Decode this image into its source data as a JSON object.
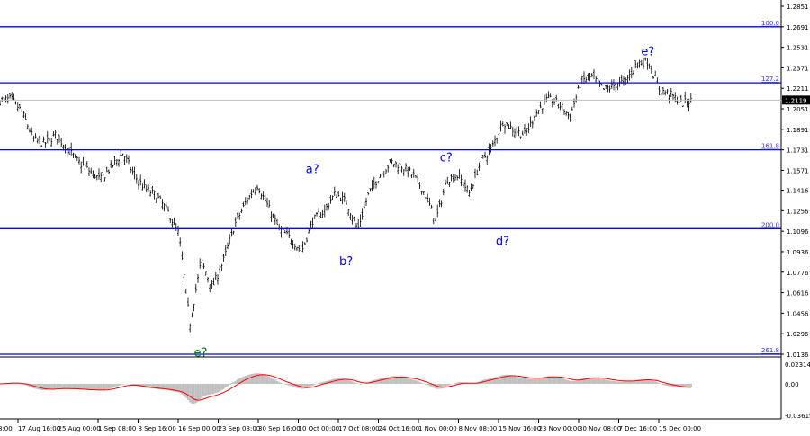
{
  "chart_data": {
    "type": "candlestick",
    "price_axis": {
      "ticks": [
        "1.2851",
        "1.2691",
        "1.2531",
        "1.2371",
        "1.2211",
        "1.2051",
        "1.1891",
        "1.1731",
        "1.1571",
        "1.1416",
        "1.1256",
        "1.1096",
        "1.0936",
        "1.0776",
        "1.0616",
        "1.0456",
        "1.0296",
        "1.0136"
      ],
      "ylim": [
        1.0136,
        1.2851
      ]
    },
    "current_price": "1.2119",
    "time_axis": {
      "ticks": [
        "8:00",
        "17 Aug 16:00",
        "25 Aug 00:00",
        "1 Sep 08:00",
        "8 Sep 16:00",
        "16 Sep 00:00",
        "23 Sep 08:00",
        "30 Sep 16:00",
        "10 Oct 00:00",
        "17 Oct 08:00",
        "24 Oct 16:00",
        "1 Nov 00:00",
        "8 Nov 08:00",
        "15 Nov 16:00",
        "23 Nov 00:00",
        "30 Nov 08:00",
        "7 Dec 16:00",
        "15 Dec 00:00"
      ]
    },
    "closes": [
      1.2114,
      1.2128,
      1.2023,
      1.1813,
      1.1778,
      1.1848,
      1.1742,
      1.1637,
      1.1567,
      1.1497,
      1.1602,
      1.1707,
      1.1532,
      1.1427,
      1.1371,
      1.1251,
      1.1076,
      1.0374,
      1.0865,
      1.0655,
      1.0865,
      1.1146,
      1.1321,
      1.1462,
      1.1286,
      1.1111,
      1.1041,
      1.0936,
      1.1181,
      1.1251,
      1.1392,
      1.1321,
      1.1111,
      1.1392,
      1.1532,
      1.1637,
      1.1602,
      1.1532,
      1.1392,
      1.1181,
      1.1497,
      1.1532,
      1.1392,
      1.1637,
      1.1742,
      1.1953,
      1.1883,
      1.1848,
      1.2023,
      1.2128,
      1.2093,
      1.1988,
      1.2269,
      1.2304,
      1.2199,
      1.2234,
      1.2269,
      1.2409,
      1.2423,
      1.2199,
      1.2163,
      1.2093,
      1.2119
    ],
    "fib_levels": [
      {
        "label": "100.0",
        "price": 1.2691
      },
      {
        "label": "127.2",
        "price": 1.2254
      },
      {
        "label": "161.8",
        "price": 1.1731
      },
      {
        "label": "200.0",
        "price": 1.1116
      },
      {
        "label": "261.8",
        "price": 1.0136
      }
    ],
    "wave_labels": [
      {
        "text": "e?",
        "price": 1.247,
        "index": 58,
        "color": "#0000ff"
      },
      {
        "text": "a?",
        "price": 1.155,
        "index": 28,
        "color": "#0000ff"
      },
      {
        "text": "b?",
        "price": 1.083,
        "index": 31,
        "color": "#0000ff"
      },
      {
        "text": "c?",
        "price": 1.164,
        "index": 40,
        "color": "#0000ff"
      },
      {
        "text": "d?",
        "price": 1.099,
        "index": 45,
        "color": "#0000ff"
      },
      {
        "text": "e?",
        "price": 1.012,
        "index": 18,
        "color": "#008000"
      }
    ],
    "indicator": {
      "ticks": [
        "0.02314",
        "0.00",
        "-0.03619"
      ],
      "ylim": [
        -0.03619,
        0.02314
      ],
      "histogram_color": "#c0c0c0",
      "signal_color": "#ff0000"
    },
    "colors": {
      "fib_line": "#0000ff",
      "bars": "#000000"
    }
  }
}
